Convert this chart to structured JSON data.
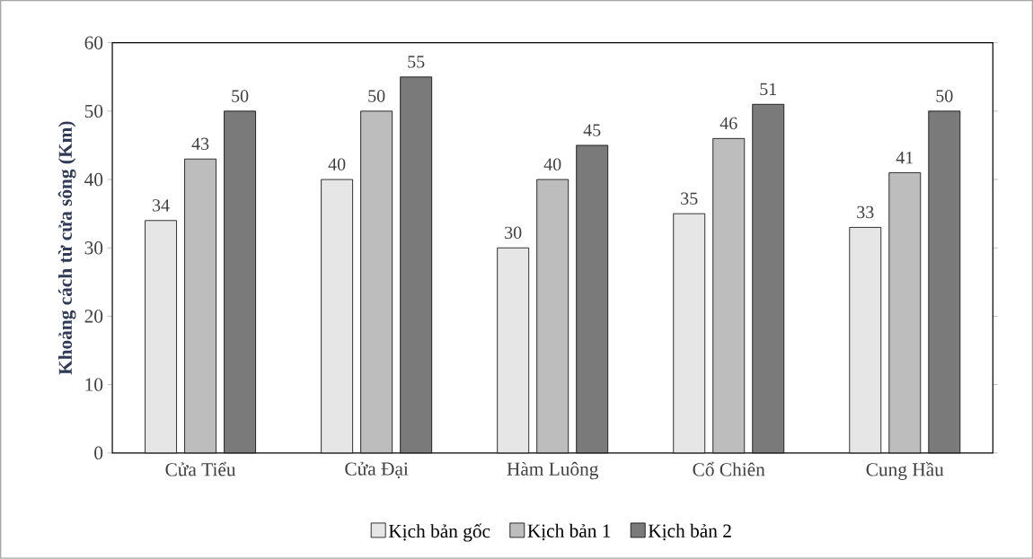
{
  "chart_data": {
    "type": "bar",
    "ylabel": "Khoảng cách từ cửa sông (Km)",
    "categories": [
      "Cửa Tiểu",
      "Cửa Đại",
      "Hàm Luông",
      "Cổ Chiên",
      "Cung Hầu"
    ],
    "series": [
      {
        "name": "Kịch bản gốc",
        "color": "#e6e6e6",
        "values": [
          34,
          40,
          30,
          35,
          33
        ]
      },
      {
        "name": "Kịch bản 1",
        "color": "#bdbdbd",
        "values": [
          43,
          50,
          40,
          46,
          41
        ]
      },
      {
        "name": "Kịch bản 2",
        "color": "#7a7a7a",
        "values": [
          50,
          55,
          45,
          51,
          50
        ]
      }
    ],
    "ylim": [
      0,
      60
    ],
    "yticks": [
      0,
      10,
      20,
      30,
      40,
      50,
      60
    ],
    "data_labels": true,
    "grid": false,
    "legend": "bottom"
  }
}
